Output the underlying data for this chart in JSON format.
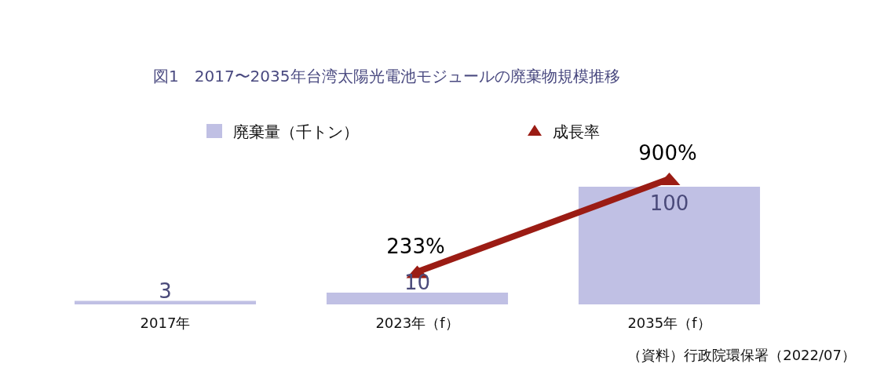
{
  "chart_data": {
    "type": "bar",
    "title": "図1　2017〜2035年台湾太陽光電池モジュールの廃棄物規模推移",
    "categories": [
      "2017年",
      "2023年（f）",
      "2035年（f）"
    ],
    "data_labels": true,
    "series": [
      {
        "name": "廃棄量（千トン）",
        "color": "#c0c0e4",
        "values": [
          3,
          10,
          100
        ]
      },
      {
        "name": "成長率",
        "type": "line",
        "axis": "y2",
        "color": "#9b1c14",
        "marker": "triangle",
        "values": [
          null,
          233,
          900
        ],
        "value_labels": [
          null,
          "233%",
          "900%"
        ]
      }
    ],
    "legend": "top",
    "annotations": [
      "（資料）行政院環保署（2022/07）"
    ]
  }
}
